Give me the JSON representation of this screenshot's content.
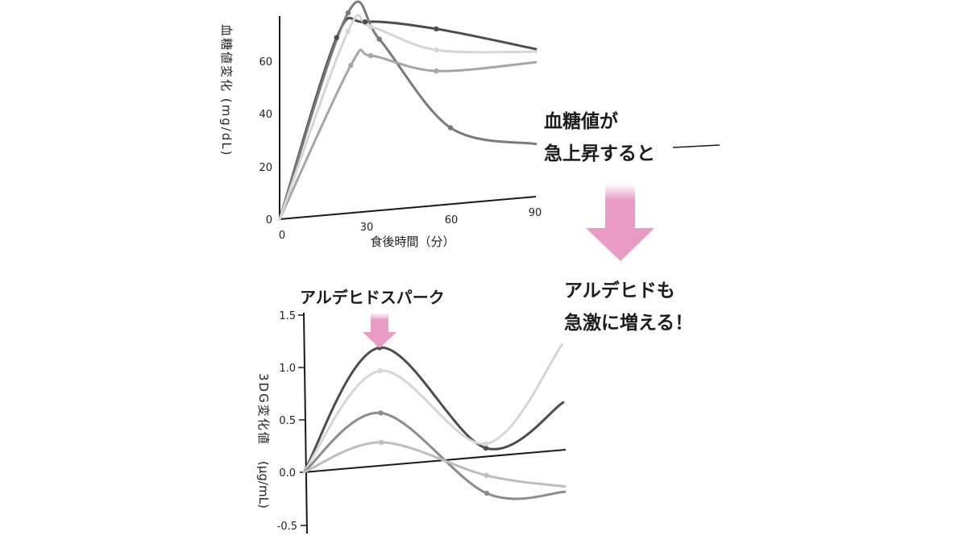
{
  "colors": {
    "axis": "#1a1a1a",
    "arrow_pink": "#e99bc6",
    "series_colors": [
      "#4d4d4d",
      "#7a7a7a",
      "#a6a6a6",
      "#d6d6d6"
    ]
  },
  "top_chart": {
    "y_label": "血糖値変化 (mg/dL)",
    "x_label": "食後時間（分）",
    "y_ticks": [
      "0",
      "20",
      "40",
      "60"
    ],
    "x_ticks": [
      "0",
      "30",
      "60",
      "90"
    ]
  },
  "bottom_chart": {
    "y_label_top": "3DG変化値",
    "y_label_unit": "(μg/mL)",
    "y_ticks": [
      "1.5",
      "1.0",
      "0.5",
      "0.0",
      "-0.5"
    ],
    "spark_label": "アルデヒドスパーク"
  },
  "callouts": {
    "top_line1": "血糖値が",
    "top_line2": "急上昇すると",
    "bottom_line1": "アルデヒドも",
    "bottom_line2": "急激に増える！"
  },
  "chart_data": [
    {
      "type": "line",
      "xlabel": "食後時間（分）",
      "ylabel": "血糖値変化 (mg/dL)",
      "xlim": [
        0,
        90
      ],
      "ylim": [
        0,
        75
      ],
      "x_ticks": [
        0,
        30,
        60,
        90
      ],
      "y_ticks": [
        0,
        20,
        40,
        60
      ],
      "series": [
        {
          "x": [
            0,
            20,
            30,
            55,
            90
          ],
          "y": [
            0,
            67,
            72,
            67,
            56
          ],
          "color": "#4d4d4d"
        },
        {
          "x": [
            0,
            24,
            35,
            60,
            90
          ],
          "y": [
            0,
            76,
            65,
            29,
            20
          ],
          "color": "#7a7a7a"
        },
        {
          "x": [
            0,
            25,
            32,
            55,
            90
          ],
          "y": [
            0,
            56,
            59,
            51,
            51
          ],
          "color": "#a6a6a6"
        },
        {
          "x": [
            0,
            24,
            32,
            55,
            90
          ],
          "y": [
            0,
            69,
            70,
            59,
            55
          ],
          "color": "#d6d6d6"
        }
      ]
    },
    {
      "type": "line",
      "ylabel": "3DG変化値 (μg/mL)",
      "ylim": [
        -0.5,
        1.5
      ],
      "y_ticks": [
        1.5,
        1.0,
        0.5,
        0.0,
        -0.5
      ],
      "annotations": [
        "アルデヒドスパーク"
      ],
      "series": [
        {
          "x": [
            0,
            30,
            70,
            100
          ],
          "y": [
            0.0,
            1.12,
            0.08,
            0.45
          ],
          "color": "#4d4d4d"
        },
        {
          "x": [
            0,
            30,
            70,
            100
          ],
          "y": [
            0.0,
            0.9,
            0.12,
            1.0
          ],
          "color": "#d6d6d6"
        },
        {
          "x": [
            0,
            30,
            70,
            100
          ],
          "y": [
            0.0,
            0.5,
            -0.35,
            -0.4
          ],
          "color": "#8c8c8c"
        },
        {
          "x": [
            0,
            30,
            70,
            100
          ],
          "y": [
            0.0,
            0.22,
            -0.18,
            -0.35
          ],
          "color": "#bdbdbd"
        }
      ]
    }
  ]
}
